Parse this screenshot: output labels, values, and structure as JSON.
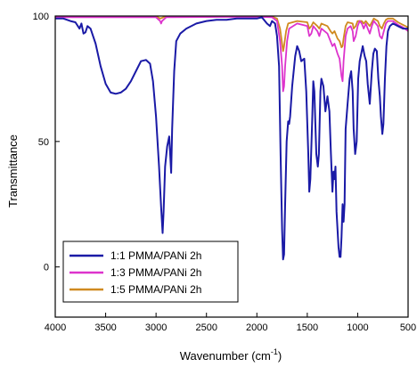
{
  "chart_data": {
    "type": "line",
    "xlabel": "Wavenumber (cm",
    "xlabel_sup": "-1",
    "xlabel_suffix": ")",
    "ylabel": "Transmittance",
    "xlim": [
      4000,
      500
    ],
    "ylim": [
      -20,
      100
    ],
    "x_reversed": true,
    "xticks": [
      4000,
      3500,
      3000,
      2500,
      2000,
      1500,
      1000,
      500
    ],
    "yticks": [
      0,
      50,
      100
    ],
    "grid": false,
    "legend_position": "bottom-left",
    "series": [
      {
        "name": "1:1 PMMA/PANi 2h",
        "color": "#1a1aa6",
        "points": [
          [
            4000,
            99
          ],
          [
            3920,
            99
          ],
          [
            3850,
            98
          ],
          [
            3800,
            97.5
          ],
          [
            3760,
            95
          ],
          [
            3740,
            97
          ],
          [
            3720,
            93
          ],
          [
            3700,
            93.5
          ],
          [
            3680,
            96
          ],
          [
            3650,
            95
          ],
          [
            3600,
            89
          ],
          [
            3550,
            80
          ],
          [
            3500,
            73
          ],
          [
            3450,
            69.5
          ],
          [
            3400,
            69
          ],
          [
            3350,
            69.5
          ],
          [
            3300,
            71
          ],
          [
            3250,
            74
          ],
          [
            3200,
            78
          ],
          [
            3150,
            82
          ],
          [
            3100,
            82.5
          ],
          [
            3060,
            81
          ],
          [
            3030,
            74
          ],
          [
            3000,
            60
          ],
          [
            2970,
            40
          ],
          [
            2950,
            24
          ],
          [
            2935,
            13.5
          ],
          [
            2925,
            22
          ],
          [
            2910,
            40
          ],
          [
            2890,
            48
          ],
          [
            2870,
            52
          ],
          [
            2860,
            45
          ],
          [
            2850,
            37.5
          ],
          [
            2840,
            55
          ],
          [
            2820,
            78
          ],
          [
            2800,
            90
          ],
          [
            2760,
            93
          ],
          [
            2700,
            95
          ],
          [
            2600,
            97
          ],
          [
            2500,
            98
          ],
          [
            2400,
            98.5
          ],
          [
            2300,
            98.5
          ],
          [
            2200,
            99
          ],
          [
            2100,
            99
          ],
          [
            2000,
            99
          ],
          [
            1950,
            99.5
          ],
          [
            1900,
            97
          ],
          [
            1870,
            96
          ],
          [
            1850,
            98
          ],
          [
            1820,
            97
          ],
          [
            1800,
            92
          ],
          [
            1780,
            80
          ],
          [
            1765,
            45
          ],
          [
            1750,
            15
          ],
          [
            1740,
            3
          ],
          [
            1730,
            5
          ],
          [
            1720,
            25
          ],
          [
            1705,
            50
          ],
          [
            1690,
            58
          ],
          [
            1680,
            57
          ],
          [
            1670,
            60
          ],
          [
            1650,
            72
          ],
          [
            1620,
            84
          ],
          [
            1600,
            88
          ],
          [
            1580,
            86
          ],
          [
            1560,
            82
          ],
          [
            1530,
            83
          ],
          [
            1510,
            70
          ],
          [
            1490,
            45
          ],
          [
            1480,
            30
          ],
          [
            1470,
            35
          ],
          [
            1450,
            60
          ],
          [
            1440,
            74
          ],
          [
            1430,
            70
          ],
          [
            1410,
            45
          ],
          [
            1395,
            40
          ],
          [
            1385,
            45
          ],
          [
            1370,
            70
          ],
          [
            1360,
            75
          ],
          [
            1340,
            72
          ],
          [
            1320,
            62
          ],
          [
            1300,
            68
          ],
          [
            1280,
            62
          ],
          [
            1265,
            45
          ],
          [
            1250,
            30
          ],
          [
            1240,
            38
          ],
          [
            1230,
            35
          ],
          [
            1220,
            40
          ],
          [
            1210,
            22
          ],
          [
            1200,
            15
          ],
          [
            1190,
            8
          ],
          [
            1180,
            4
          ],
          [
            1170,
            4
          ],
          [
            1160,
            12
          ],
          [
            1150,
            25
          ],
          [
            1140,
            18
          ],
          [
            1130,
            25
          ],
          [
            1120,
            55
          ],
          [
            1100,
            65
          ],
          [
            1080,
            75
          ],
          [
            1065,
            78
          ],
          [
            1050,
            70
          ],
          [
            1040,
            55
          ],
          [
            1025,
            45
          ],
          [
            1010,
            50
          ],
          [
            995,
            75
          ],
          [
            980,
            82
          ],
          [
            965,
            85
          ],
          [
            950,
            88
          ],
          [
            930,
            84
          ],
          [
            915,
            82
          ],
          [
            900,
            73
          ],
          [
            880,
            65
          ],
          [
            860,
            78
          ],
          [
            845,
            85
          ],
          [
            830,
            87
          ],
          [
            810,
            86
          ],
          [
            795,
            75
          ],
          [
            780,
            68
          ],
          [
            770,
            60
          ],
          [
            755,
            53
          ],
          [
            745,
            57
          ],
          [
            730,
            75
          ],
          [
            715,
            88
          ],
          [
            700,
            94
          ],
          [
            680,
            96
          ],
          [
            650,
            97
          ],
          [
            600,
            96
          ],
          [
            550,
            95
          ],
          [
            500,
            95
          ]
        ]
      },
      {
        "name": "1:3 PMMA/PANi 2h",
        "color": "#dd33cc",
        "points": [
          [
            4000,
            99.5
          ],
          [
            3500,
            99.5
          ],
          [
            3000,
            99.5
          ],
          [
            2960,
            98
          ],
          [
            2950,
            97
          ],
          [
            2940,
            98
          ],
          [
            2900,
            99.5
          ],
          [
            2000,
            99.7
          ],
          [
            1850,
            99.5
          ],
          [
            1800,
            98
          ],
          [
            1770,
            90
          ],
          [
            1750,
            80
          ],
          [
            1740,
            70
          ],
          [
            1730,
            72
          ],
          [
            1720,
            80
          ],
          [
            1700,
            90
          ],
          [
            1680,
            95
          ],
          [
            1600,
            97
          ],
          [
            1500,
            96
          ],
          [
            1480,
            92
          ],
          [
            1460,
            93
          ],
          [
            1440,
            96
          ],
          [
            1400,
            94
          ],
          [
            1380,
            92
          ],
          [
            1360,
            95
          ],
          [
            1300,
            93
          ],
          [
            1270,
            90
          ],
          [
            1250,
            88
          ],
          [
            1230,
            89
          ],
          [
            1200,
            85
          ],
          [
            1180,
            83
          ],
          [
            1160,
            76
          ],
          [
            1150,
            74
          ],
          [
            1140,
            82
          ],
          [
            1120,
            92
          ],
          [
            1100,
            95
          ],
          [
            1070,
            96
          ],
          [
            1050,
            94
          ],
          [
            1040,
            90
          ],
          [
            1020,
            92
          ],
          [
            1000,
            96
          ],
          [
            980,
            98
          ],
          [
            960,
            97
          ],
          [
            940,
            95
          ],
          [
            920,
            97
          ],
          [
            900,
            95
          ],
          [
            880,
            93
          ],
          [
            860,
            96
          ],
          [
            840,
            98
          ],
          [
            800,
            96
          ],
          [
            780,
            92
          ],
          [
            760,
            91
          ],
          [
            740,
            94
          ],
          [
            720,
            97
          ],
          [
            700,
            98
          ],
          [
            650,
            98
          ],
          [
            600,
            96.5
          ],
          [
            550,
            95.5
          ],
          [
            500,
            94
          ]
        ]
      },
      {
        "name": "1:5 PMMA/PANi 2h",
        "color": "#d08a20",
        "points": [
          [
            4000,
            100
          ],
          [
            3500,
            100
          ],
          [
            3000,
            100
          ],
          [
            2960,
            99
          ],
          [
            2940,
            99.3
          ],
          [
            2900,
            100
          ],
          [
            2000,
            100
          ],
          [
            1850,
            99.8
          ],
          [
            1800,
            99
          ],
          [
            1770,
            95
          ],
          [
            1750,
            89
          ],
          [
            1740,
            86
          ],
          [
            1730,
            88
          ],
          [
            1710,
            94
          ],
          [
            1690,
            97
          ],
          [
            1600,
            98
          ],
          [
            1500,
            97.5
          ],
          [
            1480,
            95
          ],
          [
            1460,
            96
          ],
          [
            1440,
            97.5
          ],
          [
            1400,
            96
          ],
          [
            1380,
            95
          ],
          [
            1360,
            97
          ],
          [
            1300,
            96
          ],
          [
            1270,
            94
          ],
          [
            1250,
            93
          ],
          [
            1230,
            94
          ],
          [
            1200,
            91
          ],
          [
            1180,
            90
          ],
          [
            1160,
            87.5
          ],
          [
            1150,
            88
          ],
          [
            1140,
            91
          ],
          [
            1120,
            96
          ],
          [
            1100,
            97.5
          ],
          [
            1050,
            97
          ],
          [
            1040,
            95
          ],
          [
            1020,
            96
          ],
          [
            1000,
            98
          ],
          [
            960,
            98
          ],
          [
            940,
            97
          ],
          [
            920,
            98
          ],
          [
            900,
            97
          ],
          [
            880,
            96
          ],
          [
            860,
            97.5
          ],
          [
            840,
            99
          ],
          [
            800,
            98
          ],
          [
            780,
            96
          ],
          [
            760,
            95
          ],
          [
            740,
            97
          ],
          [
            720,
            98.5
          ],
          [
            700,
            99
          ],
          [
            650,
            99
          ],
          [
            600,
            97.5
          ],
          [
            550,
            96.5
          ],
          [
            500,
            95.5
          ]
        ]
      }
    ]
  }
}
